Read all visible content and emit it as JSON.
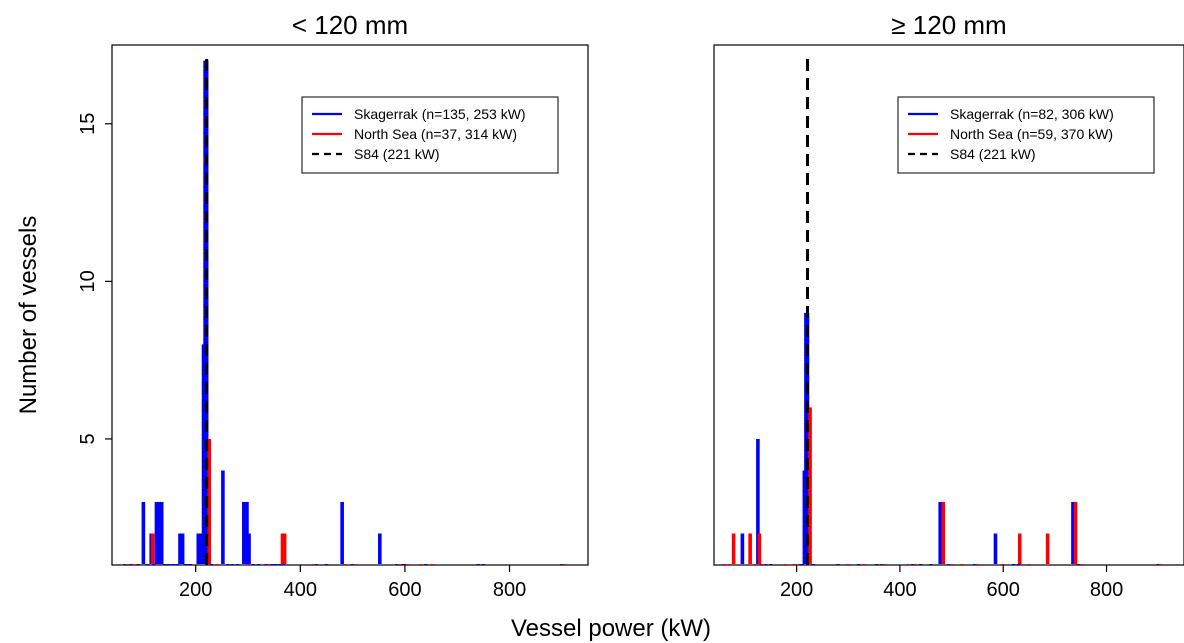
{
  "figure": {
    "ylabel": "Number of vessels",
    "xlabel": "Vessel power (kW)"
  },
  "chart_data": [
    {
      "type": "histogram-lines",
      "title": "< 120 mm",
      "xlim": [
        40,
        950
      ],
      "ylim": [
        1,
        17.5
      ],
      "xticks": [
        200,
        400,
        600,
        800
      ],
      "yticks": [
        5,
        10,
        15
      ],
      "grid": false,
      "legend_position": "top-right",
      "series": [
        {
          "name": "Skagerrak (n=135, 253 kW)",
          "color": "#0000ff",
          "points": [
            [
              65,
              1
            ],
            [
              75,
              1
            ],
            [
              90,
              1
            ],
            [
              100,
              3
            ],
            [
              108,
              1
            ],
            [
              115,
              2
            ],
            [
              120,
              1
            ],
            [
              125,
              3
            ],
            [
              130,
              3
            ],
            [
              135,
              3
            ],
            [
              140,
              1
            ],
            [
              145,
              1
            ],
            [
              150,
              1
            ],
            [
              158,
              1
            ],
            [
              165,
              1
            ],
            [
              170,
              2
            ],
            [
              175,
              2
            ],
            [
              180,
              1
            ],
            [
              185,
              1
            ],
            [
              190,
              1
            ],
            [
              205,
              2
            ],
            [
              210,
              2
            ],
            [
              215,
              8
            ],
            [
              218,
              17
            ],
            [
              221,
              17
            ],
            [
              230,
              1
            ],
            [
              240,
              1
            ],
            [
              252,
              4
            ],
            [
              262,
              1
            ],
            [
              270,
              1
            ],
            [
              280,
              1
            ],
            [
              292,
              3
            ],
            [
              298,
              3
            ],
            [
              302,
              2
            ],
            [
              310,
              1
            ],
            [
              320,
              1
            ],
            [
              335,
              1
            ],
            [
              345,
              1
            ],
            [
              352,
              1
            ],
            [
              360,
              1
            ],
            [
              368,
              1
            ],
            [
              430,
              1
            ],
            [
              450,
              1
            ],
            [
              480,
              3
            ],
            [
              500,
              1
            ],
            [
              552,
              2
            ],
            [
              585,
              1
            ],
            [
              595,
              1
            ],
            [
              600,
              1
            ],
            [
              640,
              1
            ],
            [
              740,
              1
            ],
            [
              750,
              1
            ],
            [
              900,
              1
            ]
          ]
        },
        {
          "name": "North Sea (n=37, 314 kW)",
          "color": "#ff0000",
          "points": [
            [
              70,
              1
            ],
            [
              82,
              1
            ],
            [
              118,
              2
            ],
            [
              130,
              1
            ],
            [
              226,
              5
            ],
            [
              240,
              1
            ],
            [
              300,
              1
            ],
            [
              340,
              1
            ],
            [
              366,
              2
            ],
            [
              370,
              2
            ],
            [
              425,
              1
            ],
            [
              485,
              1
            ],
            [
              505,
              1
            ],
            [
              590,
              1
            ],
            [
              605,
              1
            ],
            [
              630,
              1
            ],
            [
              652,
              1
            ],
            [
              905,
              1
            ]
          ]
        },
        {
          "name": "S84 (221 kW)",
          "color": "#000000",
          "style": "dashed",
          "x": 221
        }
      ]
    },
    {
      "type": "histogram-lines",
      "title": "≥ 120 mm",
      "xlim": [
        40,
        950
      ],
      "ylim": [
        1,
        17.5
      ],
      "xticks": [
        200,
        400,
        600,
        800
      ],
      "yticks": [],
      "grid": false,
      "legend_position": "top-right",
      "series": [
        {
          "name": "Skagerrak (n=82, 306 kW)",
          "color": "#0000ff",
          "points": [
            [
              95,
              2
            ],
            [
              125,
              5
            ],
            [
              132,
              1
            ],
            [
              140,
              1
            ],
            [
              150,
              1
            ],
            [
              210,
              1
            ],
            [
              215,
              4
            ],
            [
              218,
              9
            ],
            [
              221,
              9
            ],
            [
              232,
              1
            ],
            [
              280,
              1
            ],
            [
              300,
              1
            ],
            [
              320,
              1
            ],
            [
              355,
              1
            ],
            [
              365,
              1
            ],
            [
              425,
              1
            ],
            [
              440,
              1
            ],
            [
              460,
              1
            ],
            [
              478,
              3
            ],
            [
              495,
              1
            ],
            [
              545,
              1
            ],
            [
              585,
              2
            ],
            [
              620,
              1
            ],
            [
              630,
              1
            ],
            [
              735,
              3
            ],
            [
              745,
              1
            ],
            [
              900,
              1
            ]
          ]
        },
        {
          "name": "North Sea (n=59, 370 kW)",
          "color": "#ff0000",
          "points": [
            [
              60,
              1
            ],
            [
              70,
              1
            ],
            [
              78,
              2
            ],
            [
              110,
              2
            ],
            [
              120,
              1
            ],
            [
              128,
              2
            ],
            [
              135,
              1
            ],
            [
              178,
              1
            ],
            [
              195,
              1
            ],
            [
              203,
              1
            ],
            [
              226,
              6
            ],
            [
              300,
              1
            ],
            [
              330,
              1
            ],
            [
              370,
              1
            ],
            [
              415,
              1
            ],
            [
              430,
              1
            ],
            [
              484,
              3
            ],
            [
              500,
              1
            ],
            [
              520,
              1
            ],
            [
              550,
              1
            ],
            [
              600,
              1
            ],
            [
              632,
              2
            ],
            [
              650,
              1
            ],
            [
              686,
              2
            ],
            [
              740,
              3
            ],
            [
              752,
              1
            ],
            [
              905,
              1
            ]
          ]
        },
        {
          "name": "S84 (221 kW)",
          "color": "#000000",
          "style": "dashed",
          "x": 221
        }
      ]
    }
  ]
}
